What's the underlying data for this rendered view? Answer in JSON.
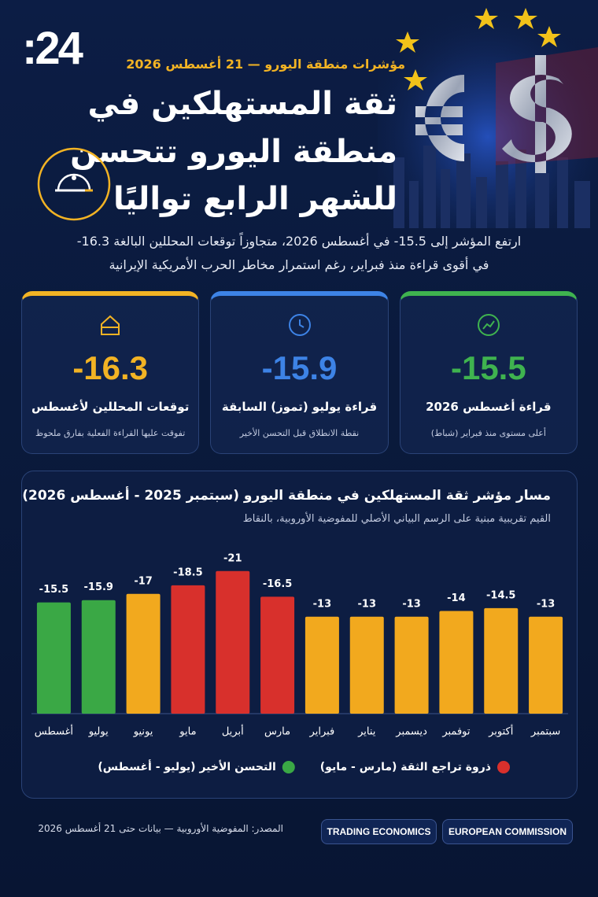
{
  "header": {
    "logo": ":24",
    "kicker": "مؤشرات منطقة اليورو — 21 أغسطس 2026",
    "title": [
      "ثقة المستهلكين في",
      "منطقة اليورو تتحسن",
      "للشهر الرابع تواليًا"
    ]
  },
  "summary": [
    "ارتفع المؤشر إلى ‎-15.5‏ في أغسطس 2026، متجاوزاً توقعات المحللين البالغة ‎-16.3‏",
    "في أقوى قراءة منذ فبراير، رغم استمرار مخاطر الحرب الأمريكية الإيرانية"
  ],
  "cards": [
    {
      "value": -15.5,
      "label": "قراءة أغسطس 2026",
      "note": "أعلى مستوى منذ فبراير (شباط)",
      "color": "#3fb34f"
    },
    {
      "value": -15.9,
      "label": "قراءة يوليو (تموز) السابقة",
      "note": "نقطة الانطلاق قبل التحسن الأخير",
      "color": "#3d83e6"
    },
    {
      "value": -16.3,
      "label": "توقعات المحللين لأغسطس",
      "note": "تفوقت عليها القراءة الفعلية بفارق ملحوظ",
      "color": "#f2b324"
    }
  ],
  "chart_data": {
    "type": "bar",
    "title": "مسار مؤشر ثقة المستهلكين في منطقة اليورو (سبتمبر 2025 - أغسطس 2026)",
    "subtitle": "القيم تقريبية مبنية على الرسم البياني الأصلي للمفوضية الأوروبية، بالنقاط",
    "direction": "rtl",
    "categories": [
      "سبتمبر",
      "أكتوبر",
      "توفمبر",
      "ديسمبر",
      "يناير",
      "فبراير",
      "مارس",
      "أبريل",
      "مايو",
      "يونيو",
      "يوليو",
      "أغسطس"
    ],
    "values": [
      -13,
      -14.5,
      -14,
      -13,
      -13,
      -13,
      -16.5,
      -21,
      -18.5,
      -17,
      -15.9,
      -15.5
    ],
    "colors": [
      "#f2a91e",
      "#f2a91e",
      "#f2a91e",
      "#f2a91e",
      "#f2a91e",
      "#f2a91e",
      "#d8302c",
      "#d8302c",
      "#d8302c",
      "#f2a91e",
      "#3aa845",
      "#3aa845"
    ],
    "ylim": [
      4,
      -22
    ],
    "legend": [
      {
        "name": "ذروة تراجع الثقة (مارس - مايو)",
        "color": "#d8302c"
      },
      {
        "name": "التحسن الأخير (يوليو - أغسطس)",
        "color": "#3aa845"
      }
    ]
  },
  "footer": {
    "source": "المصدر: المفوضية الأوروبية — بيانات حتى 21 أغسطس 2026",
    "badges": [
      "EUROPEAN COMMISSION",
      "TRADING ECONOMICS"
    ]
  }
}
